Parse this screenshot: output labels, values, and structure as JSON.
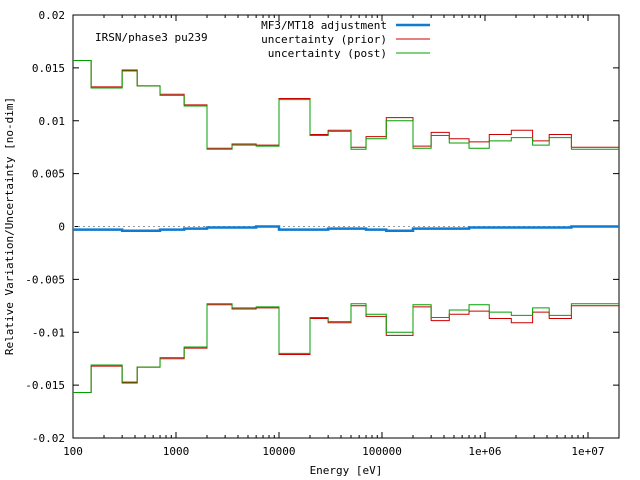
{
  "chart_data": {
    "type": "line",
    "annotation": "IRSN/phase3 pu239",
    "xlabel": "Energy [eV]",
    "ylabel": "Relative Variation/Uncertainty [no-dim]",
    "xscale": "log",
    "xlim": [
      100,
      20000000
    ],
    "ylim": [
      -0.02,
      0.02
    ],
    "xticks": [
      {
        "value": 100,
        "label": "100"
      },
      {
        "value": 1000,
        "label": "1000"
      },
      {
        "value": 10000,
        "label": "10000"
      },
      {
        "value": 100000,
        "label": "100000"
      },
      {
        "value": 1000000,
        "label": "1e+06"
      },
      {
        "value": 10000000,
        "label": "1e+07"
      }
    ],
    "yticks": [
      {
        "value": 0.02,
        "label": "0.02"
      },
      {
        "value": 0.015,
        "label": "0.015"
      },
      {
        "value": 0.01,
        "label": "0.01"
      },
      {
        "value": 0.005,
        "label": "0.005"
      },
      {
        "value": 0,
        "label": "0"
      },
      {
        "value": -0.005,
        "label": "-0.005"
      },
      {
        "value": -0.01,
        "label": "-0.01"
      },
      {
        "value": -0.015,
        "label": "-0.015"
      },
      {
        "value": -0.02,
        "label": "-0.02"
      }
    ],
    "grid": false,
    "zero_line": true,
    "legend_position": "top-center",
    "bin_edges": [
      100,
      150,
      300,
      420,
      700,
      1200,
      2000,
      3500,
      6000,
      10000,
      20000,
      30000,
      50000,
      70000,
      110000,
      200000,
      300000,
      450000,
      700000,
      1100000,
      1800000,
      2900000,
      4200000,
      6900000,
      20000000
    ],
    "series": [
      {
        "name": "MF3/MT18 adjustment",
        "color": "#0e7bd3",
        "style": "thick-step",
        "values": [
          -0.0003,
          -0.0003,
          -0.0004,
          -0.0004,
          -0.0003,
          -0.0002,
          -0.0001,
          -0.0001,
          0.0,
          -0.0003,
          -0.0003,
          -0.0002,
          -0.0002,
          -0.0003,
          -0.0004,
          -0.0002,
          -0.0002,
          -0.0002,
          -0.0001,
          -0.0001,
          -0.0001,
          -0.0001,
          -0.0001,
          0.0
        ]
      },
      {
        "name": "uncertainty (prior)",
        "color": "#cc0000",
        "style": "symmetric-step",
        "values": [
          0.0157,
          0.0132,
          0.0148,
          0.0133,
          0.0125,
          0.0115,
          0.0074,
          0.0078,
          0.0077,
          0.0121,
          0.0087,
          0.0091,
          0.0075,
          0.0085,
          0.0103,
          0.0076,
          0.0089,
          0.0083,
          0.008,
          0.0087,
          0.0091,
          0.0081,
          0.0087,
          0.0075
        ]
      },
      {
        "name": "uncertainty (post)",
        "color": "#00a000",
        "style": "symmetric-step",
        "values": [
          0.0157,
          0.0131,
          0.0147,
          0.0133,
          0.0124,
          0.0114,
          0.0073,
          0.0077,
          0.0076,
          0.012,
          0.0086,
          0.009,
          0.0073,
          0.0083,
          0.01,
          0.0074,
          0.0086,
          0.0079,
          0.0074,
          0.0081,
          0.0084,
          0.0077,
          0.0084,
          0.0073
        ]
      }
    ]
  }
}
